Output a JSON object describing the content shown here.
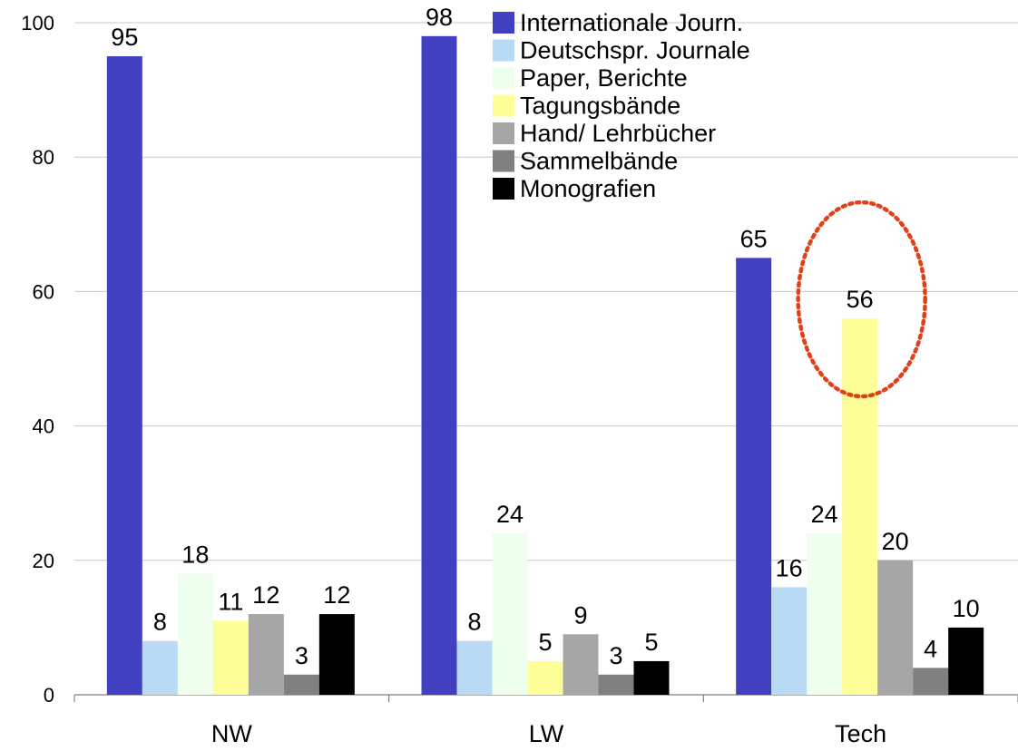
{
  "chart_data": {
    "type": "bar",
    "categories": [
      "NW",
      "LW",
      "Tech"
    ],
    "series": [
      {
        "name": "Internationale Journ.",
        "color": "#4040C0",
        "values": [
          95,
          98,
          65
        ]
      },
      {
        "name": "Deutschspr. Journale",
        "color": "#B8DAF4",
        "values": [
          8,
          8,
          16
        ]
      },
      {
        "name": "Paper, Berichte",
        "color": "#EEFFEE",
        "values": [
          18,
          24,
          24
        ]
      },
      {
        "name": "Tagungsbände",
        "color": "#FFFF99",
        "values": [
          11,
          5,
          56
        ]
      },
      {
        "name": "Hand/ Lehrbücher",
        "color": "#A6A6A6",
        "values": [
          12,
          9,
          20
        ]
      },
      {
        "name": "Sammelbände",
        "color": "#808080",
        "values": [
          3,
          3,
          4
        ]
      },
      {
        "name": "Monografien",
        "color": "#000000",
        "values": [
          12,
          5,
          10
        ]
      }
    ],
    "y_ticks": [
      "0",
      "20",
      "40",
      "60",
      "80",
      "100"
    ],
    "ylim": [
      0,
      100
    ],
    "grid": true,
    "legend_position": "top-center",
    "annotation": {
      "type": "dotted-ellipse",
      "color": "#E0401A",
      "highlights": {
        "category": "Tech",
        "series": "Tagungsbände"
      }
    }
  }
}
